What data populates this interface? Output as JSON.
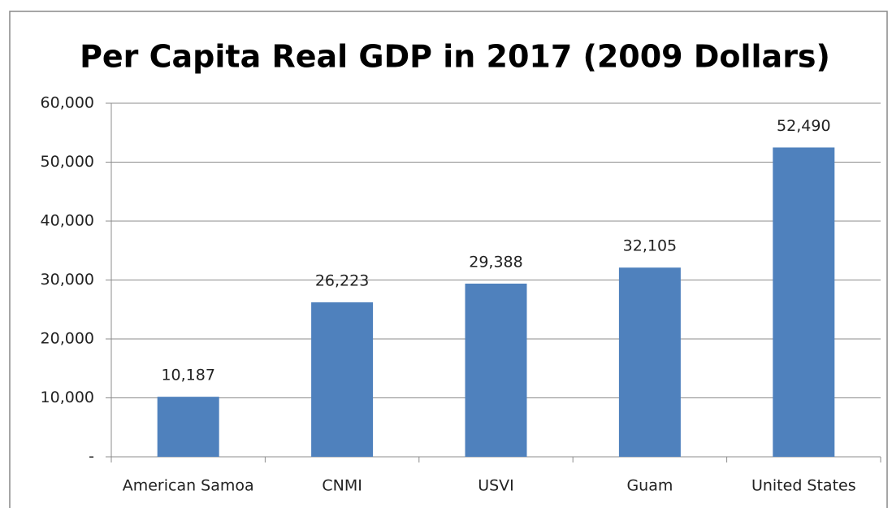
{
  "chart_data": {
    "type": "bar",
    "title": "Per Capita Real GDP in 2017 (2009 Dollars)",
    "categories": [
      "American Samoa",
      "CNMI",
      "USVI",
      "Guam",
      "United States"
    ],
    "values": [
      10187,
      26223,
      29388,
      32105,
      52490
    ],
    "value_labels": [
      "10,187",
      "26,223",
      "29,388",
      "32,105",
      "52,490"
    ],
    "color": "#4f81bd",
    "ylim": [
      0,
      60000
    ],
    "yticks": [
      {
        "value": 0,
        "label": "-"
      },
      {
        "value": 10000,
        "label": "10,000"
      },
      {
        "value": 20000,
        "label": "20,000"
      },
      {
        "value": 30000,
        "label": "30,000"
      },
      {
        "value": 40000,
        "label": "40,000"
      },
      {
        "value": 50000,
        "label": "50,000"
      },
      {
        "value": 60000,
        "label": "60,000"
      }
    ],
    "grid": true
  }
}
